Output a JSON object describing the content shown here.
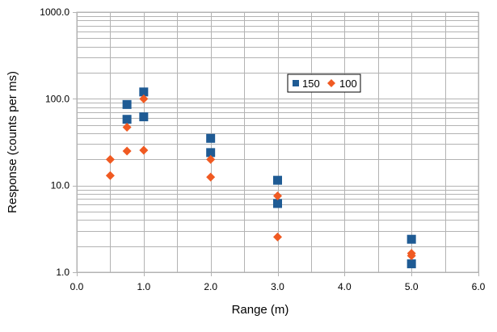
{
  "chart_data": {
    "type": "scatter",
    "title": "",
    "xlabel": "Range (m)",
    "ylabel": "Response (counts per ms)",
    "xlim": [
      0,
      6
    ],
    "ylim": [
      1,
      1000
    ],
    "y_scale": "log",
    "grid": true,
    "legend_position": "top-right-inside",
    "x_ticks": [
      "0.0",
      "1.0",
      "2.0",
      "3.0",
      "4.0",
      "5.0",
      "6.0"
    ],
    "y_ticks": [
      "1.0",
      "10.0",
      "100.0",
      "1000.0"
    ],
    "series": [
      {
        "name": "150",
        "marker": "square",
        "color": "#1f5b94",
        "x": [
          0.75,
          0.75,
          1.0,
          1.0,
          2.0,
          2.0,
          3.0,
          3.0,
          5.0,
          5.0
        ],
        "y": [
          86,
          58,
          120,
          62,
          35,
          24,
          11.5,
          6.2,
          2.4,
          1.25
        ]
      },
      {
        "name": "100",
        "marker": "diamond",
        "color": "#f05a22",
        "x": [
          0.5,
          0.5,
          0.75,
          0.75,
          1.0,
          1.0,
          2.0,
          2.0,
          3.0,
          3.0,
          5.0,
          5.0
        ],
        "y": [
          20,
          13,
          47,
          25,
          100,
          25.5,
          20,
          12.5,
          7.6,
          2.55,
          1.65,
          1.55
        ]
      }
    ]
  }
}
